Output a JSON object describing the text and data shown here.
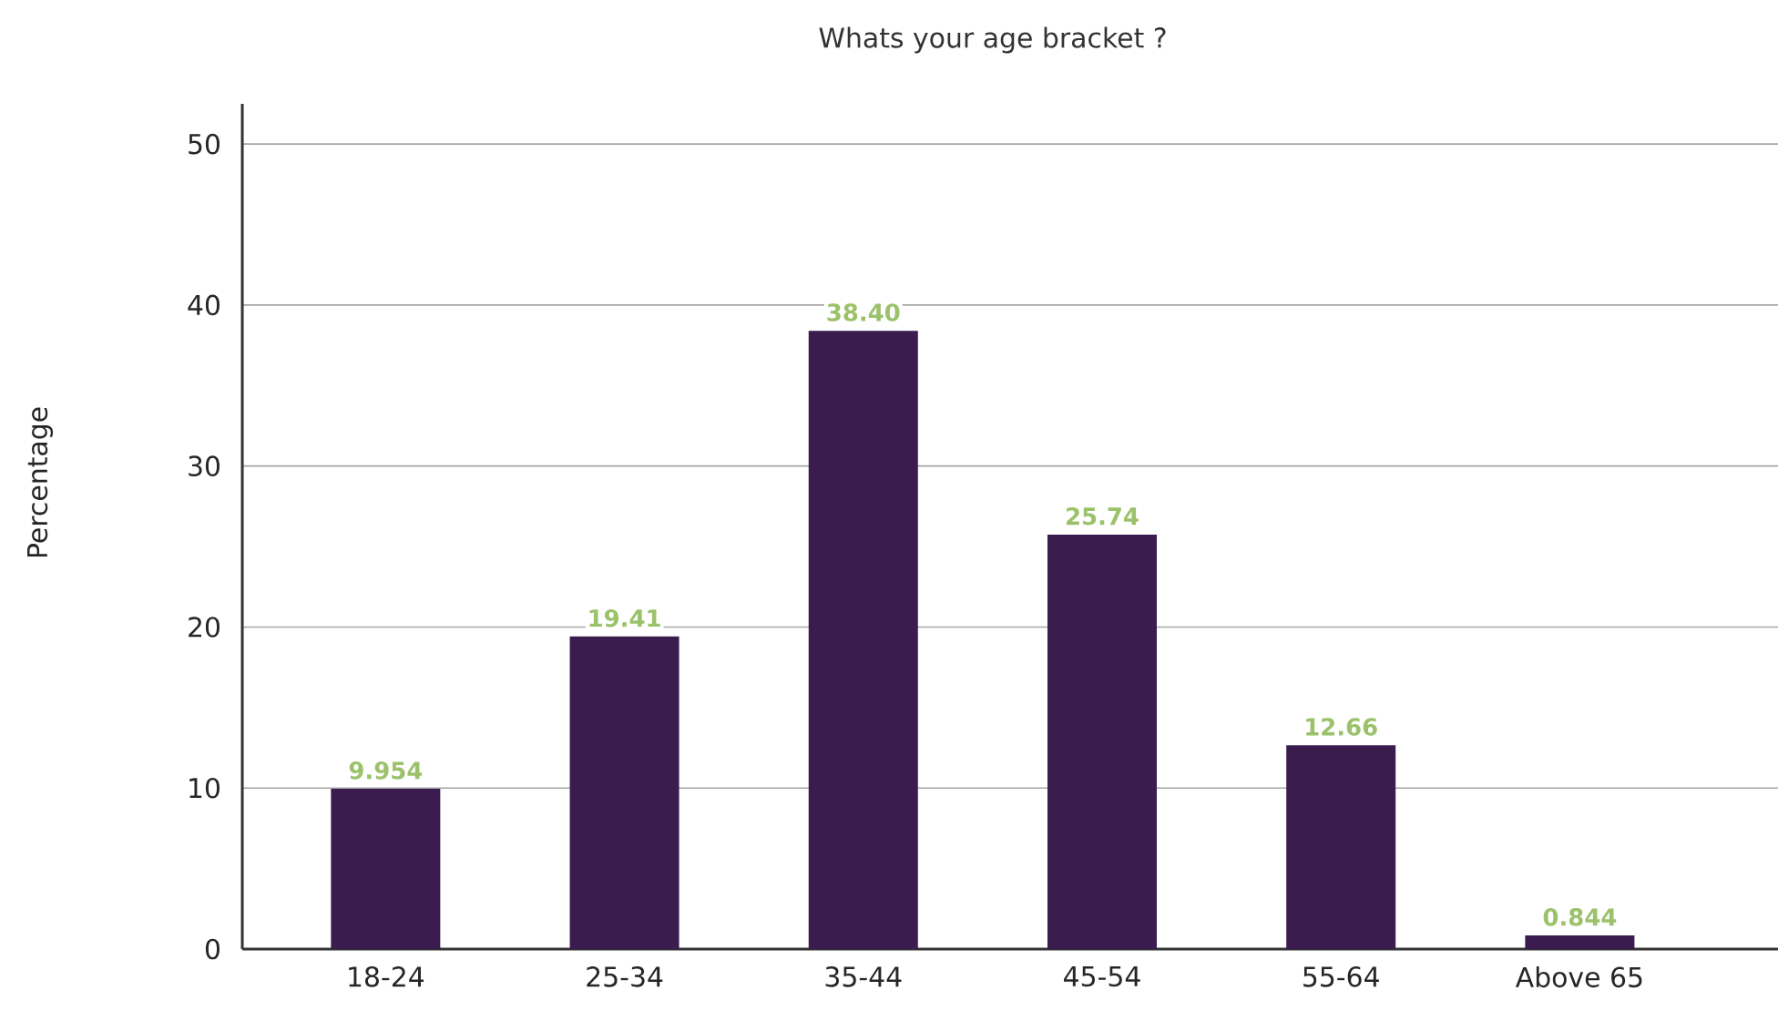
{
  "chart_data": {
    "type": "bar",
    "title": "Whats your age bracket ?",
    "ylabel": "Percentage",
    "categories": [
      "18-24",
      "25-34",
      "35-44",
      "45-54",
      "55-64",
      "Above 65"
    ],
    "values": [
      9.954,
      19.41,
      38.4,
      25.74,
      12.66,
      0.844
    ],
    "value_labels": [
      "9.954",
      "19.41",
      "38.40",
      "25.74",
      "12.66",
      "0.844"
    ],
    "color": "#3a1c4f",
    "ylim": [
      0,
      52.5
    ],
    "yticks": [
      0,
      10,
      20,
      30,
      40,
      50
    ],
    "grid": "y"
  }
}
